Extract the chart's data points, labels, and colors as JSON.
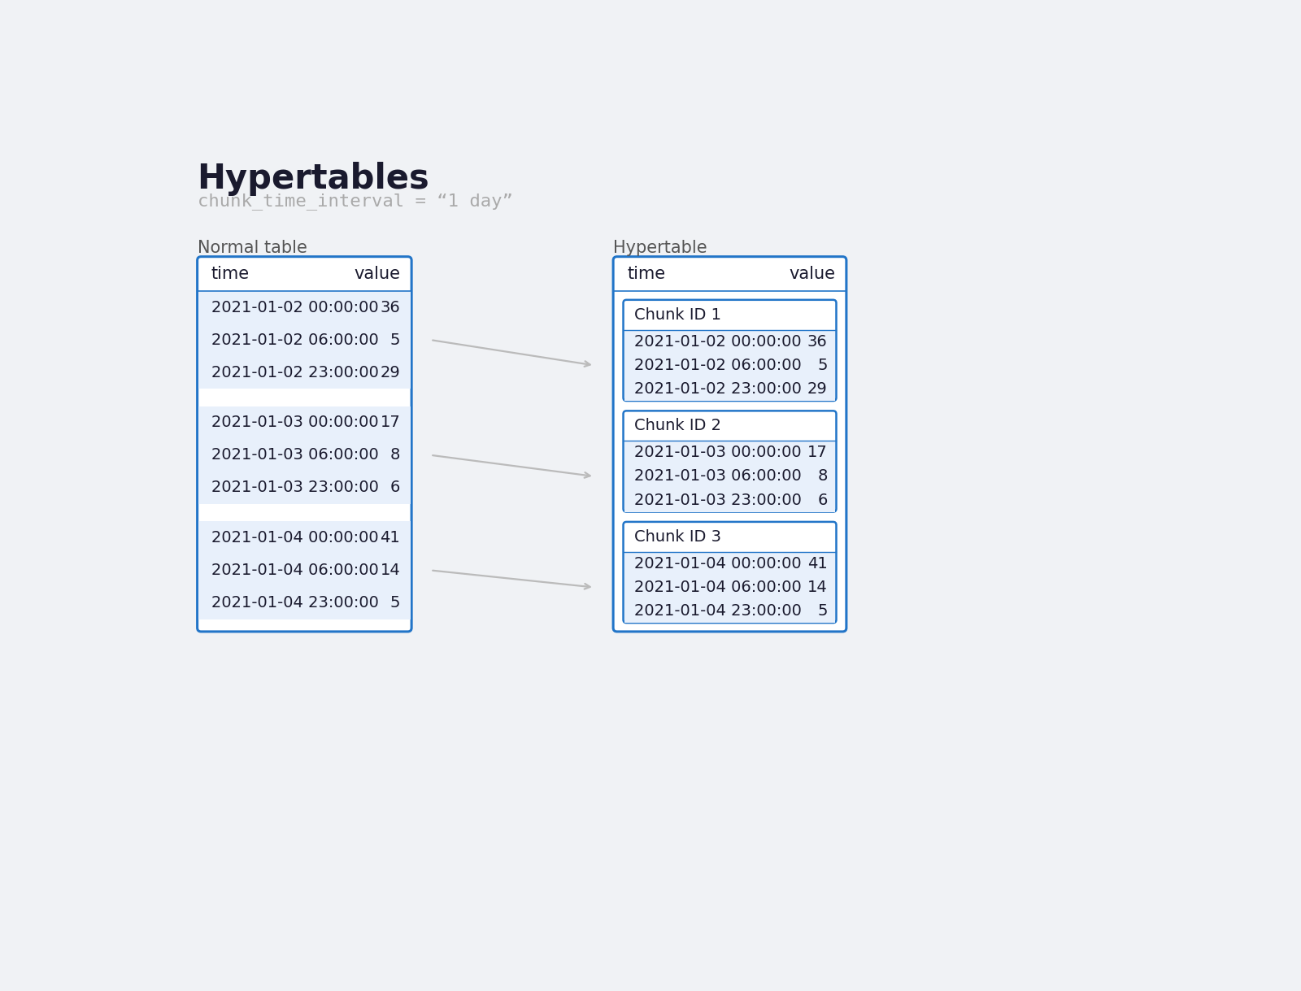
{
  "title": "Hypertables",
  "subtitle": "chunk_time_interval = “1 day”",
  "bg_color": "#f0f2f5",
  "table_bg": "#ffffff",
  "row_bg_alt": "#e8f0fb",
  "border_color": "#2275c8",
  "text_color": "#1a1a2e",
  "label_color": "#555555",
  "subtitle_color": "#aaaaaa",
  "arrow_color": "#bbbbbb",
  "normal_table_label": "Normal table",
  "hyper_table_label": "Hypertable",
  "columns": [
    "time",
    "value"
  ],
  "chunks": [
    {
      "chunk_label": "Chunk ID 1",
      "rows": [
        [
          "2021-01-02 00:00:00",
          "36"
        ],
        [
          "2021-01-02 06:00:00",
          "5"
        ],
        [
          "2021-01-02 23:00:00",
          "29"
        ]
      ]
    },
    {
      "chunk_label": "Chunk ID 2",
      "rows": [
        [
          "2021-01-03 00:00:00",
          "17"
        ],
        [
          "2021-01-03 06:00:00",
          "8"
        ],
        [
          "2021-01-03 23:00:00",
          "6"
        ]
      ]
    },
    {
      "chunk_label": "Chunk ID 3",
      "rows": [
        [
          "2021-01-04 00:00:00",
          "41"
        ],
        [
          "2021-01-04 06:00:00",
          "14"
        ],
        [
          "2021-01-04 23:00:00",
          "5"
        ]
      ]
    }
  ]
}
